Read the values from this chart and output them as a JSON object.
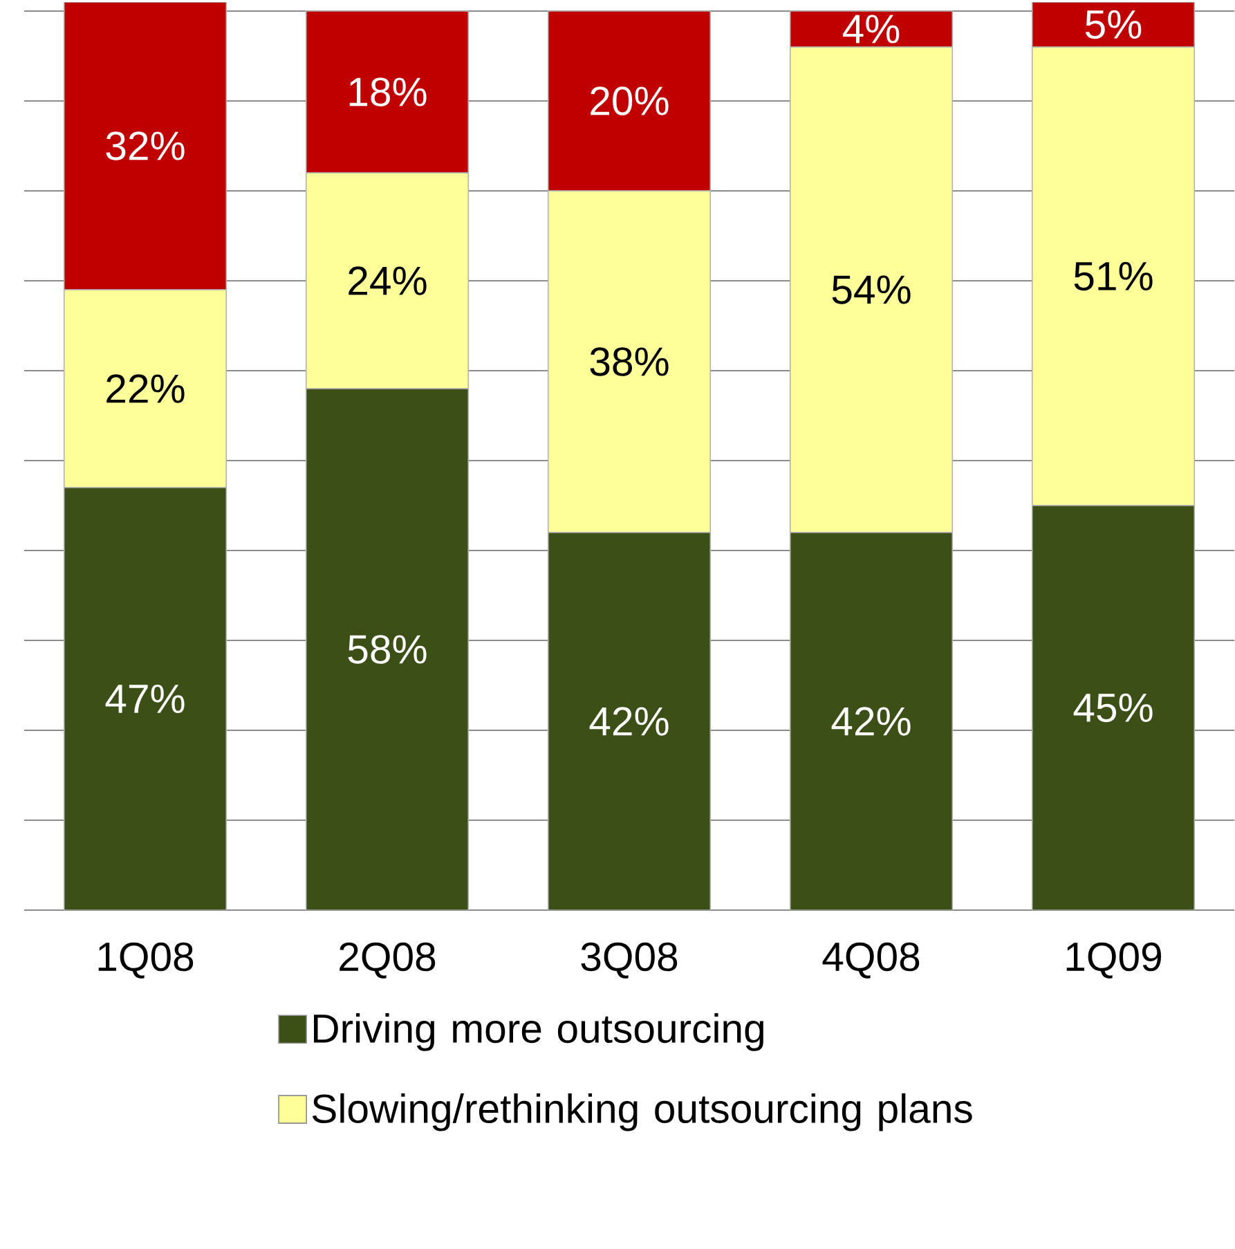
{
  "chart_data": {
    "type": "bar",
    "stacked": true,
    "categories": [
      "1Q08",
      "2Q08",
      "3Q08",
      "4Q08",
      "1Q09"
    ],
    "series": [
      {
        "name": "Driving more outsourcing",
        "color": "#3b4f17",
        "values": [
          47,
          58,
          42,
          42,
          45
        ],
        "value_labels": [
          "47%",
          "58%",
          "42%",
          "42%",
          "45%"
        ]
      },
      {
        "name": "Slowing/rethinking outsourcing plans",
        "color": "#ffff99",
        "values": [
          22,
          24,
          38,
          54,
          51
        ],
        "value_labels": [
          "22%",
          "24%",
          "38%",
          "54%",
          "51%"
        ]
      },
      {
        "color": "#c00000",
        "values": [
          32,
          18,
          20,
          4,
          5
        ],
        "value_labels": [
          "32%",
          "18%",
          "20%",
          "4%",
          "5%"
        ]
      }
    ],
    "ylim": [
      0,
      101
    ],
    "yticks": [
      {
        "value": 0,
        "label": null
      },
      {
        "value": 10,
        "label": null
      },
      {
        "value": 20,
        "label": null
      },
      {
        "value": 30,
        "label": null
      },
      {
        "value": 40,
        "label": null
      },
      {
        "value": 50,
        "label": null
      },
      {
        "value": 60,
        "label": null
      },
      {
        "value": 70,
        "label": null
      },
      {
        "value": 80,
        "label": null
      },
      {
        "value": 90,
        "label": null
      },
      {
        "value": 100,
        "label": null
      }
    ],
    "tick_labels": "x",
    "grid": "y",
    "legend": "bottom"
  }
}
